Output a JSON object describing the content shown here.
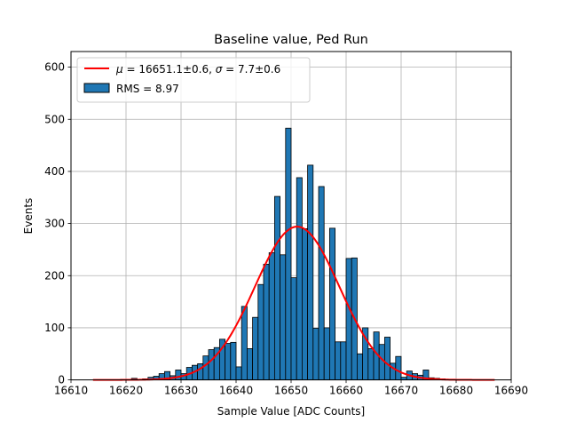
{
  "chart_data": {
    "type": "bar",
    "title": "Baseline value, Ped Run",
    "xlabel": "Sample Value [ADC Counts]",
    "ylabel": "Events",
    "xlim": [
      16610,
      16690
    ],
    "ylim": [
      0,
      630
    ],
    "xticks": [
      16610,
      16620,
      16630,
      16640,
      16650,
      16660,
      16670,
      16680,
      16690
    ],
    "yticks": [
      0,
      100,
      200,
      300,
      400,
      500,
      600
    ],
    "grid": true,
    "legend_position": "top-left",
    "bin_width": 1,
    "histogram": {
      "name": "RMS = 8.97",
      "color": "#1f77b4",
      "edgecolor": "#000000",
      "bins": [
        16619,
        16620,
        16621,
        16622,
        16623,
        16624,
        16625,
        16626,
        16627,
        16628,
        16629,
        16630,
        16631,
        16632,
        16633,
        16634,
        16635,
        16636,
        16637,
        16638,
        16639,
        16640,
        16641,
        16642,
        16643,
        16644,
        16645,
        16646,
        16647,
        16648,
        16649,
        16650,
        16651,
        16652,
        16653,
        16654,
        16655,
        16656,
        16657,
        16658,
        16659,
        16660,
        16661,
        16662,
        16663,
        16664,
        16665,
        16666,
        16667,
        16668,
        16669,
        16670,
        16671,
        16672,
        16673,
        16674,
        16675,
        16676,
        16677,
        16678,
        16679,
        16680
      ],
      "values": [
        1,
        1,
        3,
        1,
        2,
        5,
        7,
        12,
        16,
        8,
        19,
        12,
        24,
        28,
        31,
        46,
        58,
        62,
        78,
        70,
        72,
        25,
        141,
        60,
        120,
        183,
        222,
        244,
        352,
        240,
        483,
        196,
        388,
        290,
        412,
        99,
        371,
        100,
        291,
        73,
        73,
        233,
        234,
        50,
        100,
        60,
        92,
        68,
        82,
        32,
        45,
        5,
        17,
        12,
        9,
        19,
        4,
        3,
        2,
        1,
        1,
        0
      ]
    },
    "fit": {
      "name": "$\\mu = 16651.1 \\pm 0.6$, $\\sigma = 7.7 \\pm 0.6$",
      "legend_mu": "μ",
      "legend_eq1": " = 16651.1±0.6, ",
      "legend_sigma": "σ",
      "legend_eq2": " = 7.7±0.6",
      "mu": 16651.1,
      "sigma": 7.7,
      "amplitude": 294,
      "x_range": [
        16614,
        16687
      ],
      "color": "#ff0000"
    }
  }
}
